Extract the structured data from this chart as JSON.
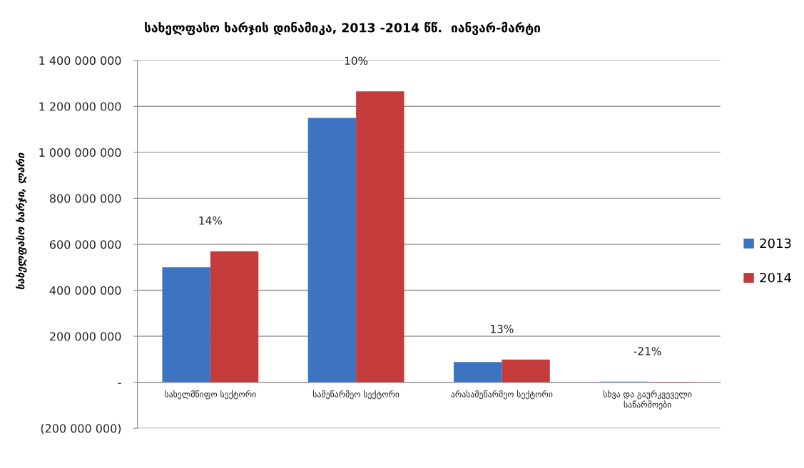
{
  "chart_data": {
    "type": "bar",
    "title": "სახელფასო ხარჯის დინამიკა, 2013 -2014 წწ.  იანვარ-მარტი",
    "ylabel": "სახელფასო ხარჯი, ლარი",
    "categories": [
      "სახელმწიფო სექტორი",
      "სამეწარმეო სექტორი",
      "არასამეწარმეო სექტორი",
      "სხვა და გაურკვეველი\nსაწარმოები"
    ],
    "series": [
      {
        "name": "2013",
        "color": "#3c74c2",
        "values": [
          500000000,
          1150000000,
          88000000,
          3000000
        ]
      },
      {
        "name": "2014",
        "color": "#c43b3b",
        "values": [
          570000000,
          1265000000,
          99000000,
          2000000
        ]
      }
    ],
    "ylim": [
      -200000000,
      1400000000
    ],
    "yticks": [
      {
        "value": -200000000,
        "label": "(200 000 000)"
      },
      {
        "value": 0,
        "label": "-"
      },
      {
        "value": 200000000,
        "label": "200 000 000"
      },
      {
        "value": 400000000,
        "label": "400 000 000"
      },
      {
        "value": 600000000,
        "label": "600 000 000"
      },
      {
        "value": 800000000,
        "label": "800 000 000"
      },
      {
        "value": 1000000000,
        "label": "1 000 000 000"
      },
      {
        "value": 1200000000,
        "label": "1 200 000 000"
      },
      {
        "value": 1400000000,
        "label": "1 400 000 000"
      }
    ],
    "annotations": [
      {
        "text": "14%",
        "x": "სახელმწიფო სექტორი",
        "y": 570000000
      },
      {
        "text": "10%",
        "x": "სამეწარმეო სექტორი",
        "y": 1265000000
      },
      {
        "text": "13%",
        "x": "არასამეწარმეო სექტორი",
        "y": 99000000
      },
      {
        "text": "-21%",
        "x": "სხვა და გაურკვეველი\nსაწარმოები",
        "y": 2000000
      }
    ],
    "grid": "y",
    "legend": "right"
  }
}
